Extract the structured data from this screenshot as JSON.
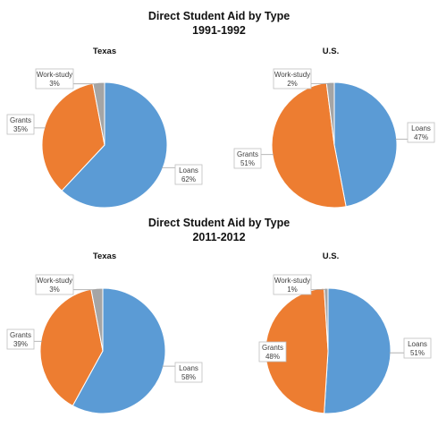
{
  "sections": [
    {
      "title_line1": "Direct Student Aid by Type",
      "title_line2": "1991-1992"
    },
    {
      "title_line1": "Direct Student Aid by Type",
      "title_line2": "2011-2012"
    }
  ],
  "colors": {
    "Loans": "#5b9bd5",
    "Grants": "#ed7d31",
    "Work-study": "#a5a5a5"
  },
  "chart_data": [
    {
      "type": "pie",
      "title": "Texas",
      "section": "1991-1992",
      "categories": [
        "Loans",
        "Grants",
        "Work-study"
      ],
      "values": [
        62,
        35,
        3
      ],
      "data_labels": [
        "62%",
        "35%",
        "3%"
      ],
      "legend": "none"
    },
    {
      "type": "pie",
      "title": "U.S.",
      "section": "1991-1992",
      "categories": [
        "Loans",
        "Grants",
        "Work-study"
      ],
      "values": [
        47,
        51,
        2
      ],
      "data_labels": [
        "47%",
        "51%",
        "2%"
      ],
      "legend": "none"
    },
    {
      "type": "pie",
      "title": "Texas",
      "section": "2011-2012",
      "categories": [
        "Loans",
        "Grants",
        "Work-study"
      ],
      "values": [
        58,
        39,
        3
      ],
      "data_labels": [
        "58%",
        "39%",
        "3%"
      ],
      "legend": "none"
    },
    {
      "type": "pie",
      "title": "U.S.",
      "section": "2011-2012",
      "categories": [
        "Loans",
        "Grants",
        "Work-study"
      ],
      "values": [
        51,
        48,
        1
      ],
      "data_labels": [
        "51%",
        "48%",
        "1%"
      ],
      "legend": "none"
    }
  ]
}
